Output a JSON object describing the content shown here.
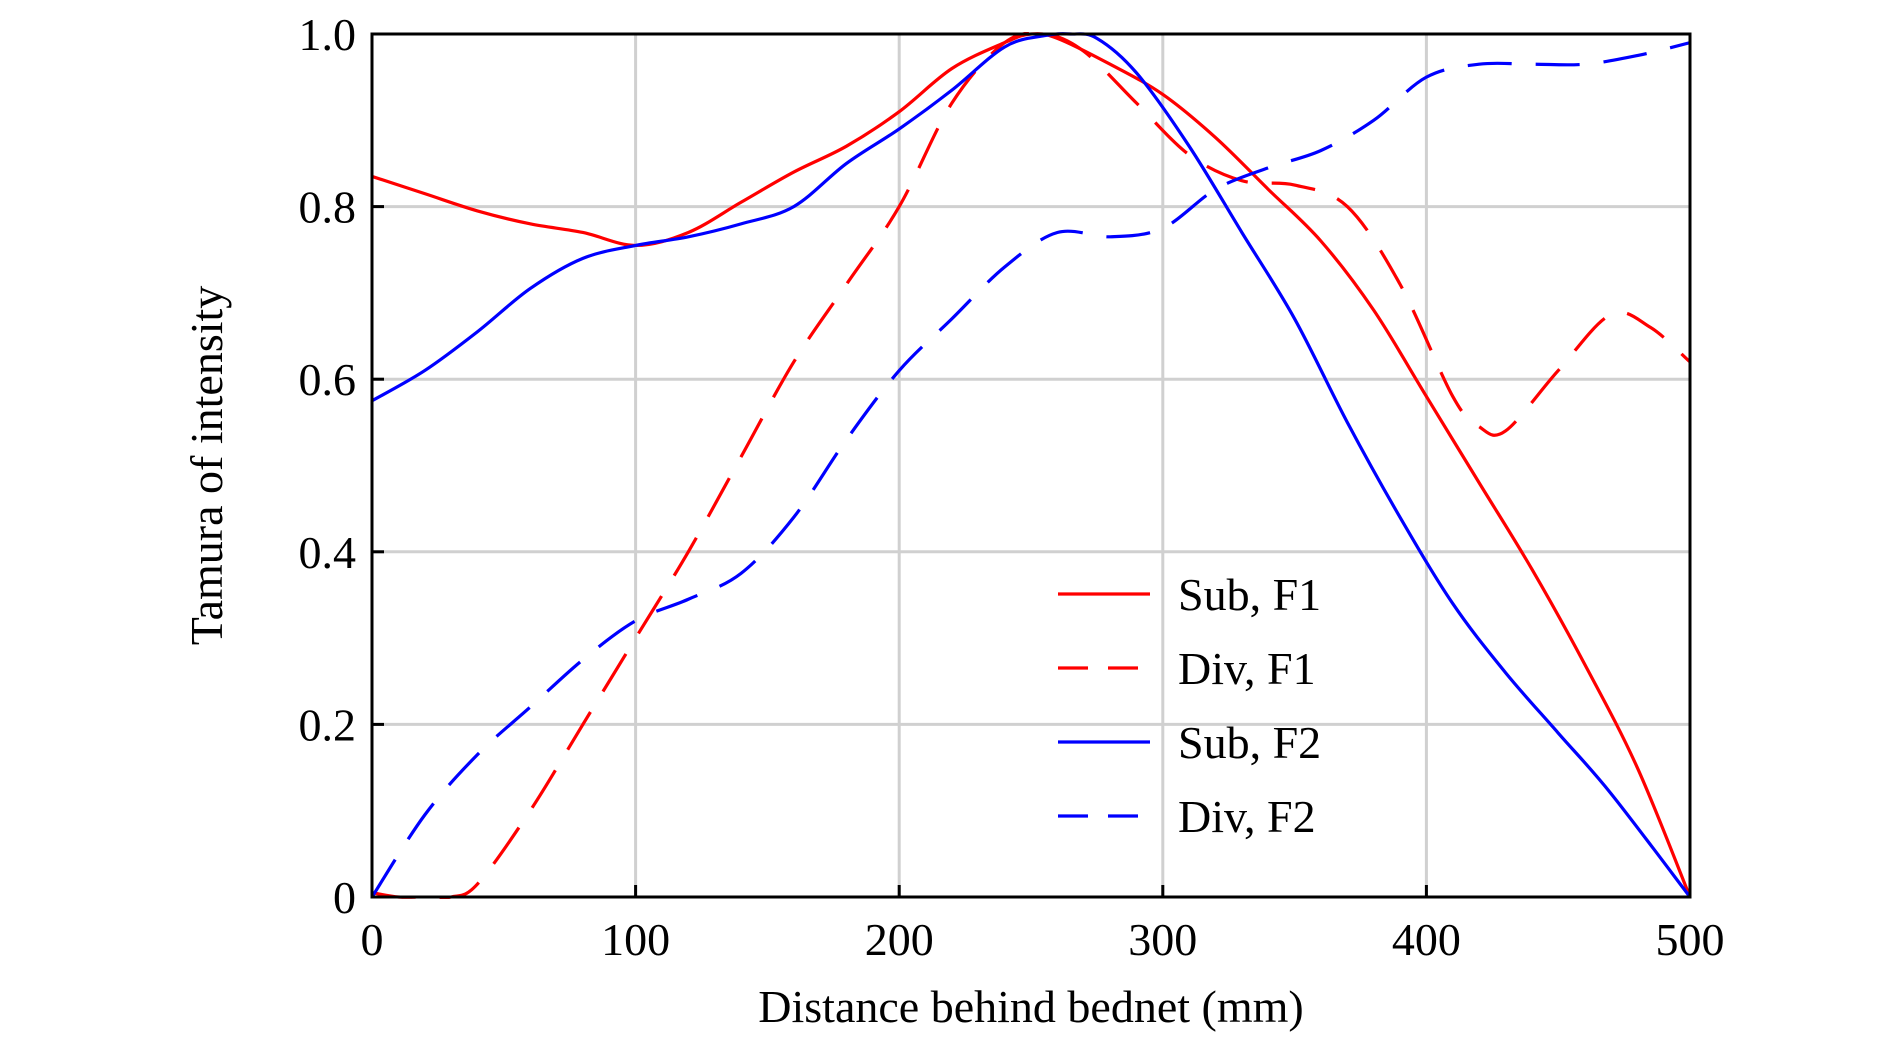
{
  "chart_data": {
    "type": "line",
    "title": "",
    "xlabel": "Distance behind bednet (mm)",
    "ylabel": "Tamura of intensity",
    "xlim": [
      0,
      500
    ],
    "ylim": [
      0,
      1.0
    ],
    "xticks": [
      0,
      100,
      200,
      300,
      400,
      500
    ],
    "xtick_labels": [
      "0",
      "100",
      "200",
      "300",
      "400",
      "500"
    ],
    "yticks": [
      0,
      0.2,
      0.4,
      0.6,
      0.8,
      1.0
    ],
    "ytick_labels": [
      "0",
      "0.2",
      "0.4",
      "0.6",
      "0.8",
      "1.0"
    ],
    "grid": true,
    "legend_position": "lower-right",
    "series": [
      {
        "name": "Sub, F1",
        "color": "#ff0000",
        "dash": "solid",
        "x": [
          0,
          20,
          40,
          60,
          80,
          100,
          120,
          140,
          160,
          180,
          200,
          220,
          240,
          250,
          260,
          280,
          300,
          320,
          340,
          360,
          380,
          400,
          420,
          440,
          460,
          480,
          500
        ],
        "y": [
          0.835,
          0.815,
          0.795,
          0.78,
          0.77,
          0.755,
          0.77,
          0.805,
          0.84,
          0.87,
          0.91,
          0.96,
          0.99,
          1.0,
          0.995,
          0.965,
          0.93,
          0.88,
          0.82,
          0.76,
          0.68,
          0.58,
          0.48,
          0.38,
          0.27,
          0.15,
          0.0
        ]
      },
      {
        "name": "Div, F1",
        "color": "#ff0000",
        "dash": "dashed",
        "x": [
          0,
          10,
          20,
          30,
          40,
          60,
          80,
          100,
          120,
          140,
          160,
          180,
          200,
          220,
          240,
          255,
          270,
          290,
          310,
          330,
          350,
          370,
          390,
          410,
          420,
          430,
          450,
          470,
          485,
          500
        ],
        "y": [
          0.005,
          0.0,
          0.0,
          0.0,
          0.015,
          0.1,
          0.2,
          0.3,
          0.4,
          0.51,
          0.62,
          0.71,
          0.8,
          0.92,
          0.99,
          1.0,
          0.98,
          0.92,
          0.86,
          0.83,
          0.825,
          0.8,
          0.71,
          0.58,
          0.545,
          0.54,
          0.61,
          0.675,
          0.66,
          0.62
        ]
      },
      {
        "name": "Sub, F2",
        "color": "#0000ff",
        "dash": "solid",
        "x": [
          0,
          20,
          40,
          60,
          80,
          100,
          120,
          140,
          160,
          180,
          200,
          220,
          240,
          255,
          265,
          275,
          290,
          310,
          330,
          350,
          370,
          390,
          410,
          430,
          450,
          470,
          500
        ],
        "y": [
          0.575,
          0.61,
          0.655,
          0.705,
          0.74,
          0.755,
          0.765,
          0.78,
          0.8,
          0.85,
          0.89,
          0.935,
          0.985,
          0.998,
          1.0,
          0.995,
          0.955,
          0.87,
          0.77,
          0.67,
          0.55,
          0.44,
          0.34,
          0.26,
          0.19,
          0.12,
          0.0
        ]
      },
      {
        "name": "Div, F2",
        "color": "#0000ff",
        "dash": "dashed",
        "x": [
          0,
          20,
          40,
          60,
          80,
          100,
          120,
          140,
          160,
          180,
          200,
          220,
          240,
          260,
          280,
          300,
          320,
          340,
          360,
          380,
          400,
          420,
          440,
          460,
          480,
          500
        ],
        "y": [
          0.0,
          0.095,
          0.165,
          0.22,
          0.275,
          0.32,
          0.345,
          0.375,
          0.44,
          0.53,
          0.61,
          0.67,
          0.73,
          0.77,
          0.765,
          0.775,
          0.82,
          0.845,
          0.865,
          0.9,
          0.95,
          0.965,
          0.965,
          0.965,
          0.975,
          0.99
        ]
      }
    ]
  }
}
